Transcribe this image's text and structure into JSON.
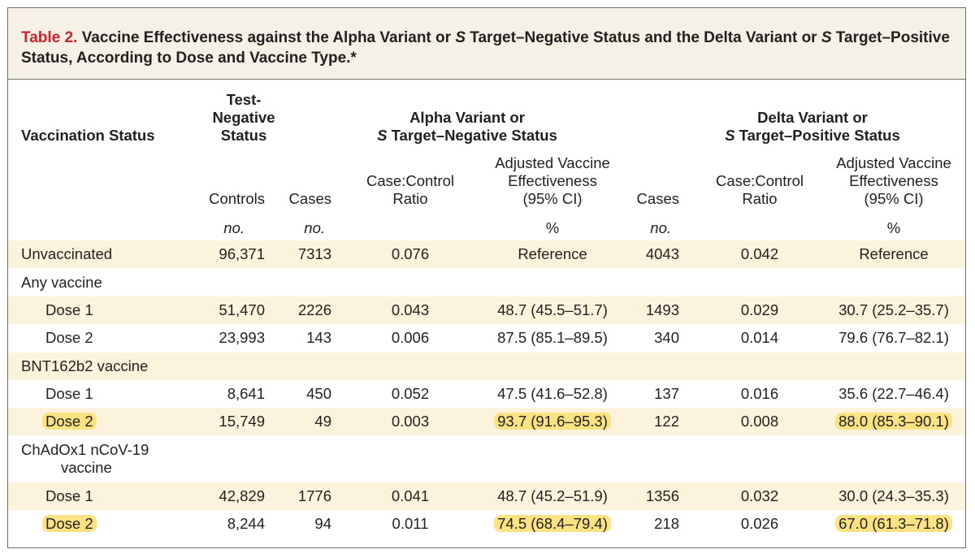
{
  "caption": {
    "label": "Table 2.",
    "text_part1": " Vaccine Effectiveness against the Alpha Variant or ",
    "s1": "S",
    "text_part2": " Target–Negative Status and the Delta Variant or ",
    "s2": "S",
    "text_part3": " Target–Positive Status, According to Dose and Vaccine Type.*"
  },
  "headers": {
    "vaccination_status": "Vaccination Status",
    "test_negative": [
      "Test-",
      "Negative",
      "Status"
    ],
    "alpha_group": {
      "line1": "Alpha Variant or",
      "s": "S",
      "line2": " Target–Negative Status"
    },
    "delta_group": {
      "line1": "Delta Variant or",
      "s": "S",
      "line2": " Target–Positive Status"
    },
    "controls": "Controls",
    "cases": "Cases",
    "ratio": [
      "Case:Control",
      "Ratio"
    ],
    "ve": [
      "Adjusted Vaccine",
      "Effectiveness",
      "(95% CI)"
    ],
    "unit_no": "no.",
    "unit_pct": "%"
  },
  "rows": [
    {
      "label": "Unvaccinated",
      "indent": false,
      "shade": true,
      "controls": "96,371",
      "alpha_cases": "7313",
      "alpha_ratio": "0.076",
      "alpha_ve": "Reference",
      "delta_cases": "4043",
      "delta_ratio": "0.042",
      "delta_ve": "Reference"
    },
    {
      "label": "Any vaccine",
      "indent": false,
      "shade": false,
      "controls": "",
      "alpha_cases": "",
      "alpha_ratio": "",
      "alpha_ve": "",
      "delta_cases": "",
      "delta_ratio": "",
      "delta_ve": ""
    },
    {
      "label": "Dose 1",
      "indent": true,
      "shade": true,
      "controls": "51,470",
      "alpha_cases": "2226",
      "alpha_ratio": "0.043",
      "alpha_ve": "48.7 (45.5–51.7)",
      "delta_cases": "1493",
      "delta_ratio": "0.029",
      "delta_ve": "30.7 (25.2–35.7)"
    },
    {
      "label": "Dose 2",
      "indent": true,
      "shade": false,
      "controls": "23,993",
      "alpha_cases": "143",
      "alpha_ratio": "0.006",
      "alpha_ve": "87.5 (85.1–89.5)",
      "delta_cases": "340",
      "delta_ratio": "0.014",
      "delta_ve": "79.6 (76.7–82.1)"
    },
    {
      "label": "BNT162b2 vaccine",
      "indent": false,
      "shade": true,
      "controls": "",
      "alpha_cases": "",
      "alpha_ratio": "",
      "alpha_ve": "",
      "delta_cases": "",
      "delta_ratio": "",
      "delta_ve": ""
    },
    {
      "label": "Dose 1",
      "indent": true,
      "shade": false,
      "controls": "8,641",
      "alpha_cases": "450",
      "alpha_ratio": "0.052",
      "alpha_ve": "47.5 (41.6–52.8)",
      "delta_cases": "137",
      "delta_ratio": "0.016",
      "delta_ve": "35.6 (22.7–46.4)"
    },
    {
      "label": "Dose 2",
      "indent": true,
      "shade": true,
      "highlight": true,
      "controls": "15,749",
      "alpha_cases": "49",
      "alpha_ratio": "0.003",
      "alpha_ve": "93.7 (91.6–95.3)",
      "delta_cases": "122",
      "delta_ratio": "0.008",
      "delta_ve": "88.0 (85.3–90.1)"
    },
    {
      "label": "ChAdOx1 nCoV-19",
      "label2": "vaccine",
      "indent": false,
      "shade": false,
      "controls": "",
      "alpha_cases": "",
      "alpha_ratio": "",
      "alpha_ve": "",
      "delta_cases": "",
      "delta_ratio": "",
      "delta_ve": ""
    },
    {
      "label": "Dose 1",
      "indent": true,
      "shade": true,
      "controls": "42,829",
      "alpha_cases": "1776",
      "alpha_ratio": "0.041",
      "alpha_ve": "48.7 (45.2–51.9)",
      "delta_cases": "1356",
      "delta_ratio": "0.032",
      "delta_ve": "30.0 (24.3–35.3)"
    },
    {
      "label": "Dose 2",
      "indent": true,
      "shade": false,
      "highlight": true,
      "controls": "8,244",
      "alpha_cases": "94",
      "alpha_ratio": "0.011",
      "alpha_ve": "74.5 (68.4–79.4)",
      "delta_cases": "218",
      "delta_ratio": "0.026",
      "delta_ve": "67.0 (61.3–71.8)"
    }
  ],
  "colors": {
    "label_red": "#c7252b",
    "caption_bg": "#f6f1e7",
    "row_shade": "#fbf3db",
    "highlight": "#fbe384"
  }
}
